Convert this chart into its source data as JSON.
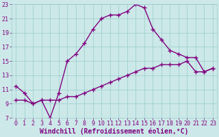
{
  "xlabel": "Windchill (Refroidissement éolien,°C)",
  "line1_x": [
    0,
    1,
    2,
    3,
    4,
    5,
    6,
    7,
    8,
    9,
    10,
    11,
    12,
    13,
    14,
    15,
    16,
    17,
    18,
    19,
    20,
    21,
    22,
    23
  ],
  "line1_y": [
    11.5,
    10.5,
    9.0,
    9.5,
    7.0,
    10.5,
    15.0,
    16.0,
    17.5,
    19.5,
    21.0,
    21.5,
    21.5,
    22.0,
    23.0,
    22.5,
    19.5,
    18.0,
    16.5,
    16.0,
    15.5,
    15.5,
    13.5,
    14.0
  ],
  "line2_x": [
    0,
    1,
    2,
    3,
    4,
    5,
    6,
    7,
    8,
    9,
    10,
    11,
    12,
    13,
    14,
    15,
    16,
    17,
    18,
    19,
    20,
    21,
    22,
    23
  ],
  "line2_y": [
    9.5,
    9.5,
    9.0,
    9.5,
    9.5,
    9.5,
    10.0,
    10.0,
    10.5,
    11.0,
    11.5,
    12.0,
    12.5,
    13.0,
    13.5,
    14.0,
    14.0,
    14.5,
    14.5,
    14.5,
    15.0,
    13.5,
    13.5,
    14.0
  ],
  "line_color": "#800080",
  "bg_color": "#cce8e8",
  "grid_color": "#99cccc",
  "xlim_min": -0.5,
  "xlim_max": 23.5,
  "ylim_min": 7,
  "ylim_max": 23,
  "xticks": [
    0,
    1,
    2,
    3,
    4,
    5,
    6,
    7,
    8,
    9,
    10,
    11,
    12,
    13,
    14,
    15,
    16,
    17,
    18,
    19,
    20,
    21,
    22,
    23
  ],
  "yticks": [
    7,
    9,
    11,
    13,
    15,
    17,
    19,
    21,
    23
  ],
  "marker": "+",
  "markersize": 4,
  "linewidth": 1.0,
  "fontsize_label": 7,
  "fontsize_tick": 6
}
